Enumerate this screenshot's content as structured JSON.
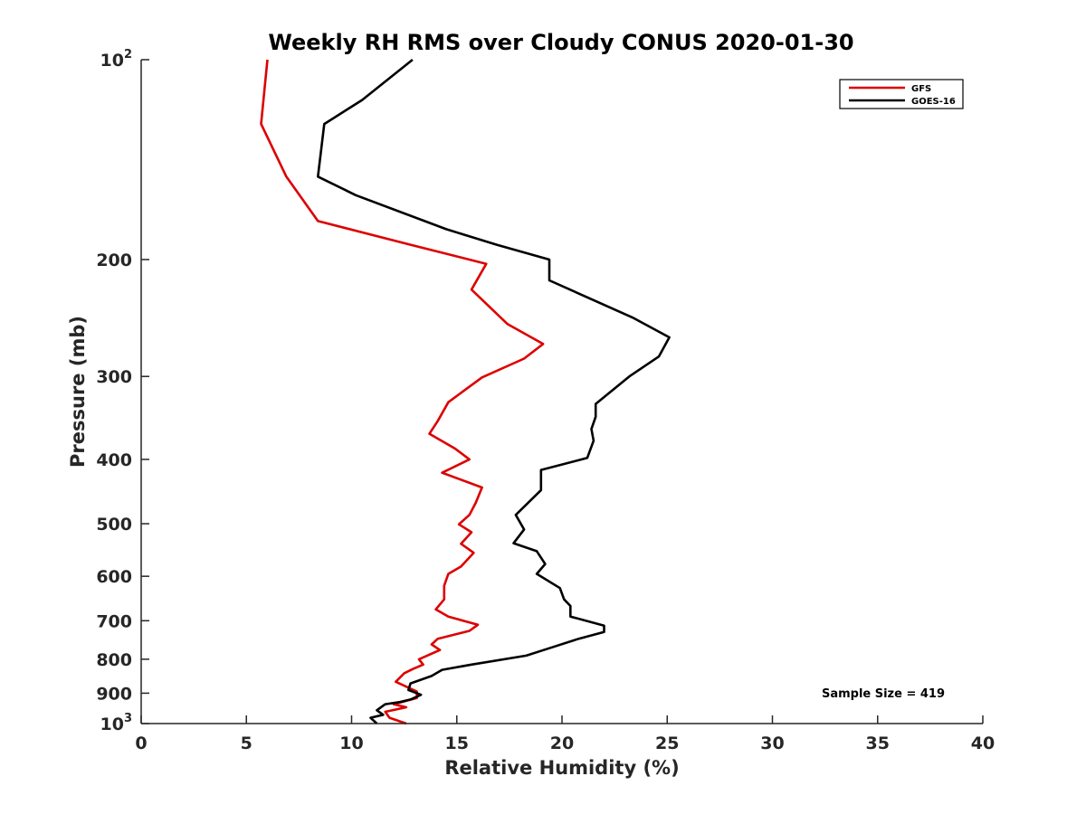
{
  "chart_data": {
    "type": "line",
    "title": "Weekly RH RMS over Cloudy CONUS 2020-01-30",
    "xlabel": "Relative Humidity (%)",
    "ylabel": "Pressure (mb)",
    "xlim": [
      0,
      40
    ],
    "ylim": [
      100,
      1000
    ],
    "y_scale": "log",
    "y_reversed": true,
    "grid": false,
    "legend_position": "top-right",
    "x_ticks": [
      0,
      5,
      10,
      15,
      20,
      25,
      30,
      35,
      40
    ],
    "y_ticks": [
      {
        "value": 100,
        "base": "10",
        "exp": "2"
      },
      {
        "value": 200,
        "label": "200"
      },
      {
        "value": 300,
        "label": "300"
      },
      {
        "value": 400,
        "label": "400"
      },
      {
        "value": 500,
        "label": "500"
      },
      {
        "value": 600,
        "label": "600"
      },
      {
        "value": 700,
        "label": "700"
      },
      {
        "value": 800,
        "label": "800"
      },
      {
        "value": 900,
        "label": "900"
      },
      {
        "value": 1000,
        "base": "10",
        "exp": "3"
      }
    ],
    "annotation": "Sample Size = 419",
    "series": [
      {
        "name": "GFS",
        "color": "#dd0000",
        "points": [
          [
            6.0,
            100
          ],
          [
            5.7,
            125
          ],
          [
            6.9,
            150
          ],
          [
            8.4,
            175
          ],
          [
            12.8,
            190
          ],
          [
            16.4,
            203
          ],
          [
            15.7,
            222
          ],
          [
            17.4,
            250
          ],
          [
            19.1,
            268
          ],
          [
            18.2,
            282
          ],
          [
            16.2,
            301
          ],
          [
            14.6,
            328
          ],
          [
            14.1,
            350
          ],
          [
            13.7,
            366
          ],
          [
            14.9,
            385
          ],
          [
            15.6,
            400
          ],
          [
            14.3,
            419
          ],
          [
            16.2,
            441
          ],
          [
            15.9,
            465
          ],
          [
            15.6,
            485
          ],
          [
            15.1,
            501
          ],
          [
            15.7,
            515
          ],
          [
            15.2,
            536
          ],
          [
            15.8,
            553
          ],
          [
            15.2,
            580
          ],
          [
            14.6,
            595
          ],
          [
            14.4,
            620
          ],
          [
            14.4,
            650
          ],
          [
            14.0,
            673
          ],
          [
            14.6,
            690
          ],
          [
            16.0,
            710
          ],
          [
            15.6,
            725
          ],
          [
            14.1,
            745
          ],
          [
            13.8,
            760
          ],
          [
            14.2,
            775
          ],
          [
            13.2,
            800
          ],
          [
            13.4,
            815
          ],
          [
            12.9,
            828
          ],
          [
            12.5,
            840
          ],
          [
            12.1,
            865
          ],
          [
            13.1,
            895
          ],
          [
            13.1,
            915
          ],
          [
            12.0,
            935
          ],
          [
            12.6,
            945
          ],
          [
            11.6,
            960
          ],
          [
            11.8,
            980
          ],
          [
            12.6,
            1000
          ]
        ]
      },
      {
        "name": "GOES-16",
        "color": "#000000",
        "points": [
          [
            12.9,
            100
          ],
          [
            10.5,
            115
          ],
          [
            8.7,
            125
          ],
          [
            8.4,
            150
          ],
          [
            10.2,
            160
          ],
          [
            14.5,
            180
          ],
          [
            16.9,
            190
          ],
          [
            19.4,
            200
          ],
          [
            19.4,
            215
          ],
          [
            23.4,
            245
          ],
          [
            25.1,
            262
          ],
          [
            24.6,
            280
          ],
          [
            23.2,
            300
          ],
          [
            21.6,
            330
          ],
          [
            21.6,
            345
          ],
          [
            21.4,
            360
          ],
          [
            21.5,
            375
          ],
          [
            21.2,
            398
          ],
          [
            19.0,
            415
          ],
          [
            19.0,
            445
          ],
          [
            17.8,
            485
          ],
          [
            18.2,
            510
          ],
          [
            17.7,
            535
          ],
          [
            18.8,
            550
          ],
          [
            19.2,
            575
          ],
          [
            18.8,
            595
          ],
          [
            19.9,
            625
          ],
          [
            20.1,
            650
          ],
          [
            20.4,
            665
          ],
          [
            20.4,
            690
          ],
          [
            22.0,
            712
          ],
          [
            22.0,
            728
          ],
          [
            20.8,
            745
          ],
          [
            19.4,
            770
          ],
          [
            18.3,
            790
          ],
          [
            15.7,
            815
          ],
          [
            14.3,
            830
          ],
          [
            13.8,
            848
          ],
          [
            12.8,
            870
          ],
          [
            12.7,
            890
          ],
          [
            13.3,
            905
          ],
          [
            12.8,
            920
          ],
          [
            12.3,
            928
          ],
          [
            11.6,
            935
          ],
          [
            11.2,
            955
          ],
          [
            11.5,
            970
          ],
          [
            10.9,
            980
          ],
          [
            11.2,
            1000
          ]
        ]
      }
    ]
  }
}
